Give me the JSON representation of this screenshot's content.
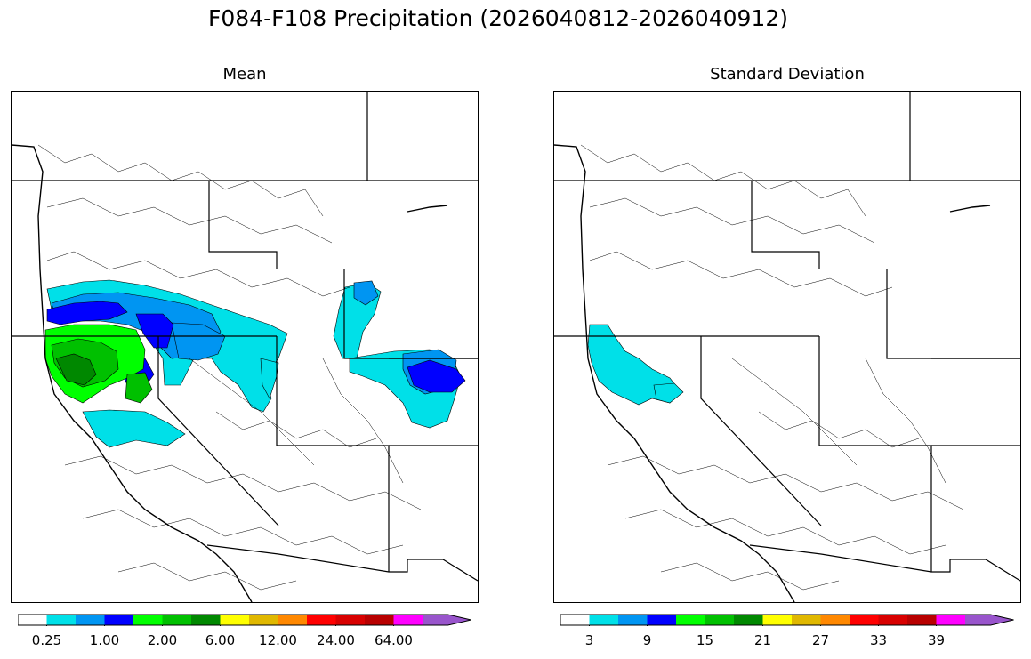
{
  "title": "F084-F108 Precipitation (2026040812-2026040912)",
  "panels": [
    {
      "name": "mean",
      "subtitle": "Mean",
      "colorbar": {
        "colors": [
          "#ffffff",
          "#00e0e8",
          "#0095f2",
          "#0000ff",
          "#00ff00",
          "#00c000",
          "#008800",
          "#ffff00",
          "#e0b800",
          "#ff8800",
          "#ff0000",
          "#d80000",
          "#b80000",
          "#ff00ff",
          "#9955cc"
        ],
        "ticks": [
          "0.25",
          "1.00",
          "2.00",
          "6.00",
          "12.00",
          "24.00",
          "64.00"
        ],
        "extend": "max"
      }
    },
    {
      "name": "std",
      "subtitle": "Standard Deviation",
      "colorbar": {
        "colors": [
          "#ffffff",
          "#00e0e8",
          "#0095f2",
          "#0000ff",
          "#00ff00",
          "#00c000",
          "#008800",
          "#ffff00",
          "#e0b800",
          "#ff8800",
          "#ff0000",
          "#d80000",
          "#b80000",
          "#ff00ff",
          "#9955cc"
        ],
        "ticks": [
          "3",
          "9",
          "15",
          "21",
          "27",
          "33",
          "39"
        ],
        "extend": "max"
      }
    }
  ]
}
